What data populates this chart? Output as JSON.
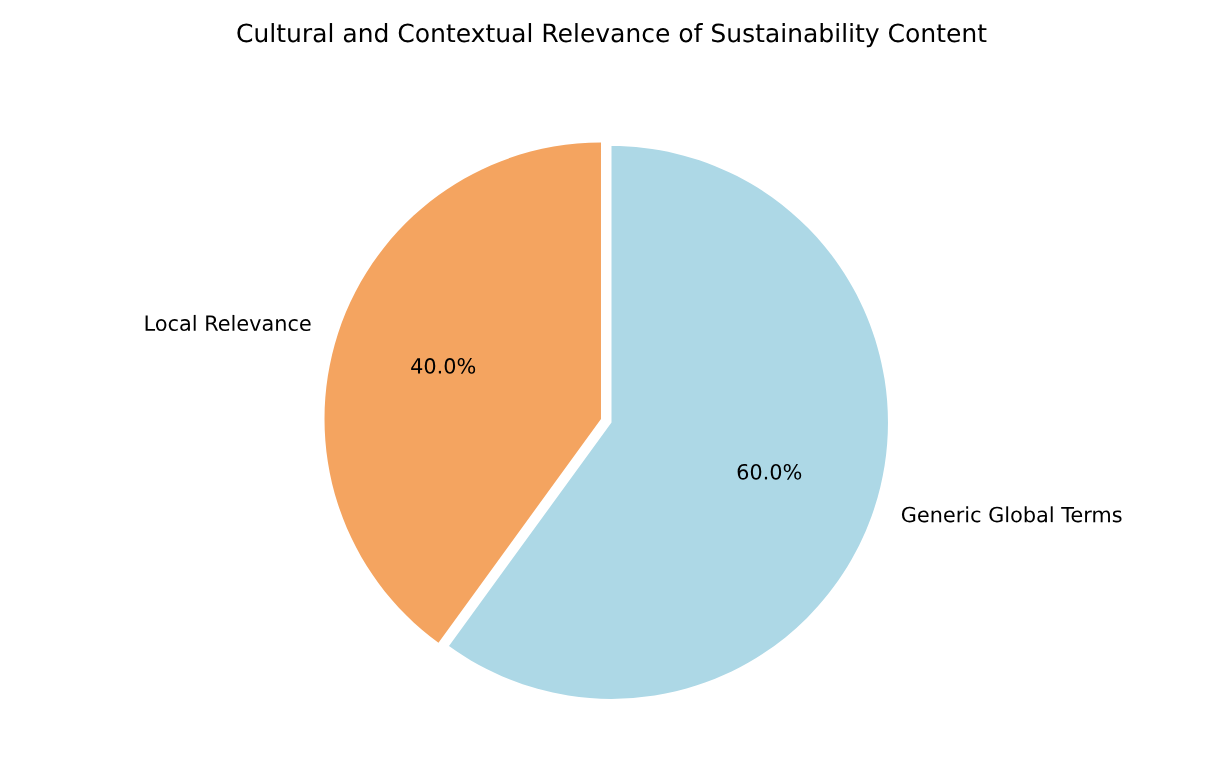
{
  "chart_data": {
    "type": "pie",
    "title": "Cultural and Contextual Relevance of Sustainability Content",
    "categories": [
      "Local Relevance",
      "Generic Global Terms"
    ],
    "values": [
      40,
      60
    ],
    "colors": [
      "#f4a460",
      "#add8e6"
    ],
    "value_labels": [
      "40.0%",
      "60.0%"
    ],
    "legend": false
  }
}
